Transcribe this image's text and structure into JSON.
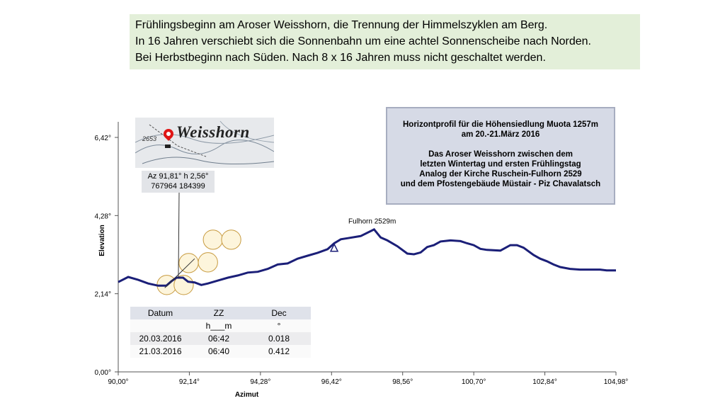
{
  "caption": {
    "lines": [
      "Frühlingsbeginn am Aroser Weisshorn, die Trennung der Himmelszyklen am Berg.",
      "In 16 Jahren verschiebt sich die Sonnenbahn um eine achtel Sonnenscheibe nach Norden.",
      "Bei Herbstbeginn nach Süden. Nach 8 x 16 Jahren muss nicht geschaltet werden."
    ]
  },
  "infobox": {
    "lines": [
      "Horizontprofil  für die Höhensiedlung Muota 1257m",
      "am 20.-21.März 2016",
      "",
      "Das Aroser Weisshorn zwischen dem",
      "letzten Wintertag und ersten Frühlingstag",
      "Analog der Kirche Ruschein-Fulhorn 2529",
      "und dem Pfostengebäude Müstair - Piz Chavalatsch"
    ]
  },
  "map_inset": {
    "title": "Weisshorn",
    "spot_height": "2653"
  },
  "annotation": {
    "line1": "Az 91,81° h 2,56°",
    "line2": "767964  184399"
  },
  "table": {
    "headers": [
      "Datum",
      "ZZ",
      "Dec"
    ],
    "units": [
      "",
      "h___m",
      "°"
    ],
    "rows": [
      [
        "20.03.2016",
        "06:42",
        "0.018"
      ],
      [
        "21.03.2016",
        "06:40",
        "0.412"
      ]
    ]
  },
  "chart_data": {
    "type": "line",
    "xlabel": "Azimut",
    "ylabel": "Elevation",
    "xlim": [
      90.0,
      104.98
    ],
    "ylim": [
      0.0,
      6.42
    ],
    "xticks": [
      "90,00°",
      "92,14°",
      "94,28°",
      "96,42°",
      "98,56°",
      "100,70°",
      "102,84°",
      "104,98°"
    ],
    "yticks": [
      "0,00°",
      "2,14°",
      "4,28°",
      "6,42°"
    ],
    "series": [
      {
        "x": [
          90.0,
          90.3,
          90.6,
          90.9,
          91.2,
          91.45,
          91.6,
          91.75,
          91.95,
          92.1,
          92.3,
          92.5,
          92.7,
          93.0,
          93.3,
          93.6,
          93.9,
          94.2,
          94.5,
          94.8,
          95.1,
          95.4,
          95.7,
          96.0,
          96.3,
          96.5,
          96.7,
          96.9,
          97.3,
          97.7,
          97.9,
          98.1,
          98.4,
          98.7,
          98.9,
          99.1,
          99.3,
          99.5,
          99.7,
          100.0,
          100.3,
          100.5,
          100.7,
          100.9,
          101.1,
          101.5,
          101.8,
          102.0,
          102.2,
          102.5,
          102.7,
          102.9,
          103.1,
          103.3,
          103.6,
          103.9,
          104.2,
          104.5,
          104.7,
          104.98
        ],
        "y": [
          2.46,
          2.6,
          2.52,
          2.42,
          2.36,
          2.36,
          2.48,
          2.58,
          2.58,
          2.47,
          2.45,
          2.38,
          2.42,
          2.5,
          2.58,
          2.64,
          2.72,
          2.74,
          2.82,
          2.94,
          2.97,
          3.1,
          3.18,
          3.26,
          3.36,
          3.52,
          3.63,
          3.66,
          3.72,
          3.9,
          3.68,
          3.6,
          3.44,
          3.24,
          3.22,
          3.27,
          3.42,
          3.47,
          3.57,
          3.6,
          3.58,
          3.52,
          3.47,
          3.37,
          3.34,
          3.32,
          3.47,
          3.47,
          3.4,
          3.2,
          3.1,
          3.03,
          2.94,
          2.87,
          2.82,
          2.8,
          2.8,
          2.8,
          2.78,
          2.78
        ]
      }
    ],
    "marker": {
      "label": "Fulhorn 2529m",
      "x": 96.5,
      "y": 3.38
    },
    "sun_discs": [
      {
        "x": 91.46,
        "y": 2.38
      },
      {
        "x": 91.97,
        "y": 2.38
      },
      {
        "x": 92.12,
        "y": 2.98
      },
      {
        "x": 92.7,
        "y": 3.0
      },
      {
        "x": 92.85,
        "y": 3.62
      },
      {
        "x": 93.4,
        "y": 3.62
      }
    ],
    "sun_disc_diameter": 0.53,
    "annotation_point": {
      "x": 91.81,
      "y": 2.56
    },
    "colors": {
      "line": "#1b1f78",
      "sun_fill": "#fdf5dc",
      "sun_stroke": "#c79a3e"
    }
  }
}
